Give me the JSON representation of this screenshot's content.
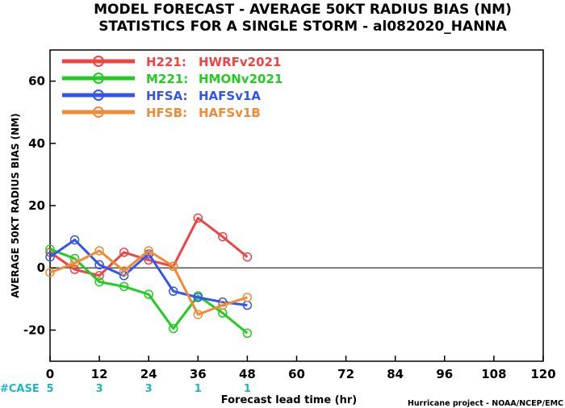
{
  "chart_data": {
    "type": "line",
    "title": "MODEL FORECAST - AVERAGE 50KT RADIUS BIAS (NM)",
    "subtitle": "STATISTICS FOR A SINGLE STORM - al082020_HANNA",
    "xlabel": "Forecast lead time (hr)",
    "ylabel": "AVERAGE 50KT RADIUS BIAS (NM)",
    "xlim": [
      0,
      120
    ],
    "ylim": [
      -30,
      70
    ],
    "xticks": [
      0,
      12,
      24,
      36,
      48,
      60,
      72,
      84,
      96,
      108,
      120
    ],
    "yticks": [
      -20,
      0,
      20,
      40,
      60
    ],
    "zero_line": true,
    "legend_position": "top-left",
    "series": [
      {
        "name": "H221:",
        "label": "HWRFv2021",
        "color": "#ee4444",
        "x": [
          0,
          6,
          12,
          18,
          24,
          30,
          36,
          42,
          48
        ],
        "y": [
          5,
          -0.5,
          -2.5,
          5,
          2.5,
          0.5,
          16,
          10,
          3.5
        ]
      },
      {
        "name": "M221:",
        "label": "HMONv2021",
        "color": "#22cc22",
        "x": [
          0,
          6,
          12,
          18,
          24,
          30,
          36,
          42,
          48
        ],
        "y": [
          6,
          3,
          -4.5,
          -6,
          -8.5,
          -19.5,
          -9,
          -14.5,
          -21
        ]
      },
      {
        "name": "HFSA:",
        "label": "HAFSv1A",
        "color": "#3355ee",
        "x": [
          0,
          6,
          12,
          18,
          24,
          30,
          36,
          42,
          48
        ],
        "y": [
          3.5,
          9,
          1,
          -2.5,
          4.5,
          -7.5,
          -9.5,
          -11,
          -12
        ]
      },
      {
        "name": "HFSB:",
        "label": "HAFSv1B",
        "color": "#f08a35",
        "x": [
          0,
          6,
          12,
          18,
          24,
          30,
          36,
          42,
          48
        ],
        "y": [
          -1.5,
          1.5,
          5.5,
          -1,
          5.5,
          0.5,
          -15,
          -12,
          -9.5
        ]
      }
    ],
    "cases": {
      "label": "#CASE",
      "x": [
        0,
        12,
        24,
        36,
        48
      ],
      "values": [
        "5",
        "3",
        "3",
        "1",
        "1"
      ]
    },
    "credit": "Hurricane project - NOAA/NCEP/EMC"
  }
}
